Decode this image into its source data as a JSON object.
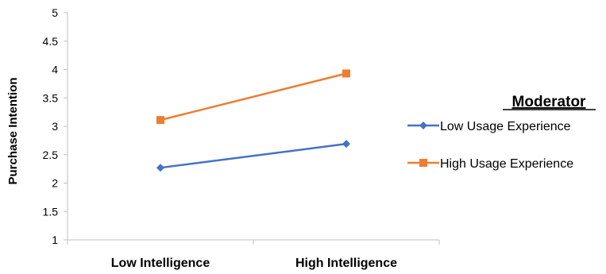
{
  "chart_data": {
    "type": "line",
    "categories": [
      "Low Intelligence",
      "High Intelligence"
    ],
    "ylabel": "Purchase Intention",
    "ylim": [
      1,
      5
    ],
    "yticks": [
      "1",
      "1.5",
      "2",
      "2.5",
      "3",
      "3.5",
      "4",
      "4.5",
      "5"
    ],
    "legend_title": "Moderator",
    "legend_position": "right",
    "grid": false,
    "series": [
      {
        "name": "Low Usage Experience",
        "values": [
          2.27,
          2.69
        ],
        "color": "#4472C4",
        "marker": "diamond"
      },
      {
        "name": "High Usage Experience",
        "values": [
          3.11,
          3.93
        ],
        "color": "#ED7D31",
        "marker": "square"
      }
    ]
  }
}
